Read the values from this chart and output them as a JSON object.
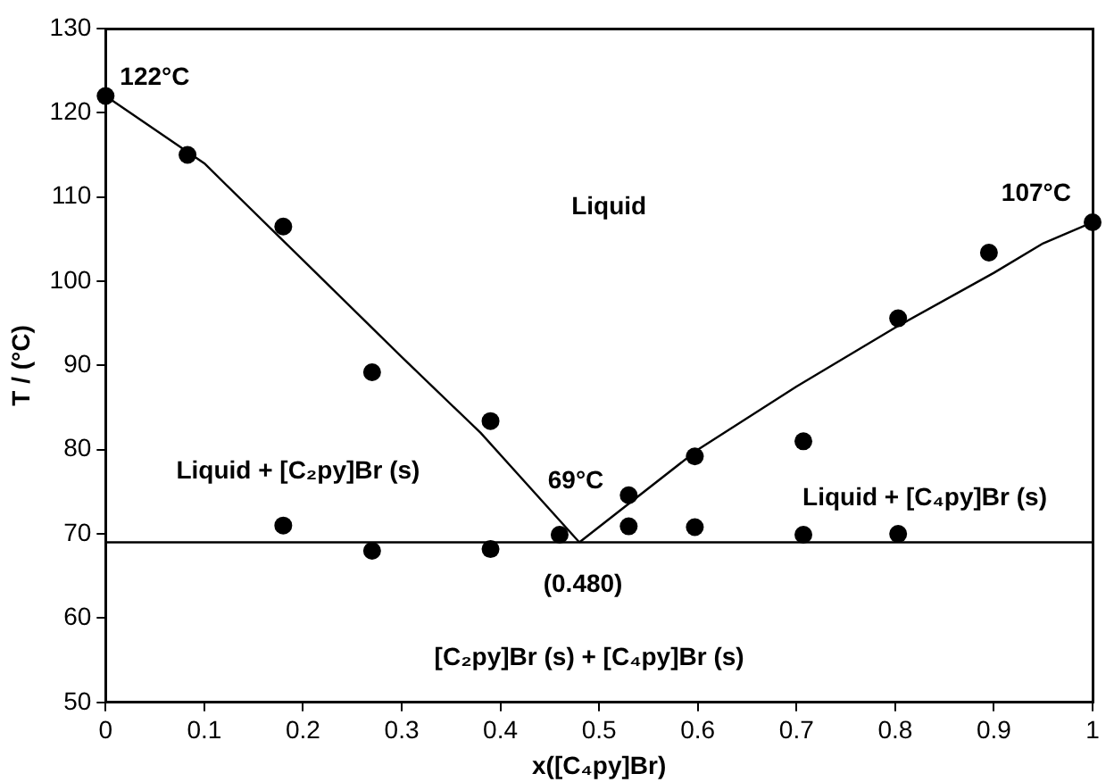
{
  "chart_data": {
    "type": "scatter",
    "xlabel": "x([C₄py]Br)",
    "ylabel": "T / (°C)",
    "xlim": [
      0,
      1
    ],
    "xticks": [
      0,
      0.1,
      0.2,
      0.3,
      0.4,
      0.5,
      0.6,
      0.7,
      0.8,
      0.9,
      1
    ],
    "ylim": [
      50,
      130
    ],
    "yticks": [
      50,
      60,
      70,
      80,
      90,
      100,
      110,
      120,
      130
    ],
    "grid": false,
    "legend": false,
    "series": [
      {
        "type": "scatter",
        "color": "#000000",
        "marker": "circle",
        "x": [
          0,
          0.083,
          0.18,
          0.27,
          0.39,
          0.46,
          0.53,
          0.597,
          0.707,
          0.803,
          0.895,
          1
        ],
        "values": [
          122,
          115,
          106.5,
          89.2,
          83.4,
          69.9,
          74.6,
          79.2,
          81,
          95.6,
          103.4,
          107
        ]
      },
      {
        "type": "scatter",
        "color": "#000000",
        "marker": "circle",
        "x": [
          0.18,
          0.27,
          0.39,
          0.53,
          0.597,
          0.707,
          0.803
        ],
        "values": [
          71,
          68,
          68.2,
          70.9,
          70.8,
          69.9,
          70
        ]
      },
      {
        "type": "line",
        "color": "#000000",
        "marker": "none",
        "x": [
          0,
          0.1,
          0.2,
          0.3,
          0.38,
          0.48
        ],
        "values": [
          122,
          114,
          102.5,
          91,
          82,
          69
        ]
      },
      {
        "type": "line",
        "color": "#000000",
        "marker": "none",
        "x": [
          0.48,
          0.6,
          0.7,
          0.8,
          0.9,
          0.95,
          1
        ],
        "values": [
          69,
          80,
          87.5,
          94.5,
          101,
          104.5,
          107
        ]
      }
    ],
    "ref_lines": [
      {
        "axis": "y",
        "value": 69,
        "color": "#000000"
      }
    ],
    "annotations": [
      {
        "text": "122°C",
        "x": 0,
        "y": 122
      },
      {
        "text": "107°C",
        "x": 1,
        "y": 107
      },
      {
        "text": "69°C",
        "x": 0.48,
        "y": 69
      },
      {
        "text": "(0.480)",
        "x": 0.48,
        "y": 69
      },
      "Liquid",
      "Liquid + [C₂py]Br (s)",
      "Liquid + [C₄py]Br (s)",
      "[C₂py]Br (s) + [C₄py]Br (s)"
    ]
  }
}
